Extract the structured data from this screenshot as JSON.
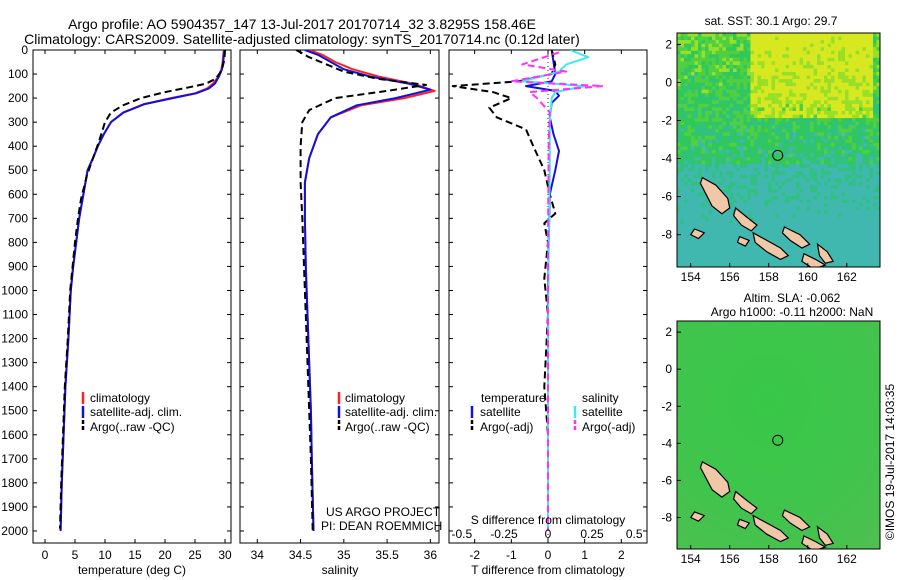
{
  "header": {
    "title_line1": "Argo profile: AO 5904357_147 13-Jul-2017 20170714_32 3.8295S 158.46E",
    "title_line2": "Climatology: CARS2009. Satellite-adjusted climatology: synTS_20170714.nc (0.12d later)"
  },
  "colors": {
    "climatology": "#ff2020",
    "satellite": "#1010e0",
    "argo": "#000000",
    "salinity_satellite": "#40e8f0",
    "salinity_argo": "#ff30ff",
    "land": "#f0c8a8"
  },
  "chart_data": [
    {
      "type": "line",
      "name": "temperature-profile",
      "xlabel": "temperature (deg C)",
      "ylabel": "",
      "xlim": [
        -2,
        31
      ],
      "ylim": [
        2050,
        0
      ],
      "xticks": [
        "0",
        "5",
        "10",
        "15",
        "20",
        "25",
        "30"
      ],
      "yticks": [
        "0",
        "100",
        "200",
        "300",
        "400",
        "500",
        "600",
        "700",
        "800",
        "900",
        "1000",
        "1100",
        "1200",
        "1300",
        "1400",
        "1500",
        "1600",
        "1700",
        "1800",
        "1900",
        "2000"
      ],
      "legend": [
        "climatology",
        "satellite-adj. clim.",
        "Argo(..raw -QC)"
      ],
      "legend_position": "lower-center",
      "series": [
        {
          "name": "climatology",
          "color_key": "climatology",
          "dashed": false,
          "points": [
            [
              29.8,
              0
            ],
            [
              29.6,
              50
            ],
            [
              29.4,
              80
            ],
            [
              28.9,
              110
            ],
            [
              28,
              140
            ],
            [
              27,
              160
            ],
            [
              25,
              180
            ],
            [
              21,
              200
            ],
            [
              16.5,
              225
            ],
            [
              13,
              260
            ],
            [
              11,
              300
            ],
            [
              9.8,
              350
            ],
            [
              8.8,
              400
            ],
            [
              8,
              450
            ],
            [
              7.1,
              500
            ],
            [
              6.4,
              600
            ],
            [
              5.7,
              700
            ],
            [
              5.2,
              800
            ],
            [
              4.7,
              900
            ],
            [
              4.3,
              1000
            ],
            [
              3.9,
              1200
            ],
            [
              3.4,
              1400
            ],
            [
              3.1,
              1600
            ],
            [
              2.8,
              1800
            ],
            [
              2.6,
              2000
            ]
          ]
        },
        {
          "name": "satellite-adj. clim.",
          "color_key": "satellite",
          "dashed": false,
          "points": [
            [
              29.9,
              0
            ],
            [
              29.7,
              50
            ],
            [
              29.5,
              80
            ],
            [
              29,
              110
            ],
            [
              28.3,
              140
            ],
            [
              27.3,
              160
            ],
            [
              25.2,
              180
            ],
            [
              21.3,
              200
            ],
            [
              16.6,
              225
            ],
            [
              13.1,
              260
            ],
            [
              11,
              300
            ],
            [
              9.8,
              350
            ],
            [
              8.8,
              400
            ],
            [
              8,
              450
            ],
            [
              7.1,
              500
            ],
            [
              6.4,
              600
            ],
            [
              5.7,
              700
            ],
            [
              5.2,
              800
            ],
            [
              4.7,
              900
            ],
            [
              4.3,
              1000
            ],
            [
              3.9,
              1200
            ],
            [
              3.4,
              1400
            ],
            [
              3.1,
              1600
            ],
            [
              2.8,
              1800
            ],
            [
              2.6,
              2000
            ]
          ]
        },
        {
          "name": "Argo(..raw -QC)",
          "color_key": "argo",
          "dashed": true,
          "points": [
            [
              30,
              0
            ],
            [
              29.9,
              40
            ],
            [
              29.6,
              70
            ],
            [
              29.2,
              95
            ],
            [
              28.4,
              120
            ],
            [
              26.8,
              140
            ],
            [
              24,
              155
            ],
            [
              20,
              175
            ],
            [
              16,
              200
            ],
            [
              13,
              230
            ],
            [
              11,
              260
            ],
            [
              10,
              300
            ],
            [
              9,
              380
            ],
            [
              8,
              450
            ],
            [
              7,
              520
            ],
            [
              6,
              620
            ],
            [
              5.5,
              700
            ],
            [
              5,
              800
            ],
            [
              4.6,
              900
            ],
            [
              4.2,
              1000
            ],
            [
              3.8,
              1200
            ],
            [
              3.3,
              1400
            ],
            [
              3,
              1600
            ],
            [
              2.7,
              1800
            ],
            [
              2.5,
              1990
            ]
          ]
        }
      ]
    },
    {
      "type": "line",
      "name": "salinity-profile",
      "xlabel": "salinity",
      "ylabel": "",
      "xlim": [
        33.8,
        36.1
      ],
      "ylim": [
        2050,
        0
      ],
      "xticks": [
        "34",
        "34.5",
        "35",
        "35.5",
        "36"
      ],
      "legend": [
        "climatology",
        "satellite-adj. clim.",
        "Argo(..raw -QC)"
      ],
      "legend_position": "lower-right",
      "annotation": [
        "US ARGO PROJECT",
        "PI: DEAN ROEMMICH"
      ],
      "series": [
        {
          "name": "climatology",
          "color_key": "climatology",
          "dashed": false,
          "points": [
            [
              34.6,
              0
            ],
            [
              34.75,
              20
            ],
            [
              34.9,
              50
            ],
            [
              35.1,
              80
            ],
            [
              35.4,
              110
            ],
            [
              35.8,
              140
            ],
            [
              36.05,
              170
            ],
            [
              35.7,
              200
            ],
            [
              35.2,
              230
            ],
            [
              34.85,
              280
            ],
            [
              34.7,
              350
            ],
            [
              34.6,
              450
            ],
            [
              34.55,
              550
            ],
            [
              34.55,
              700
            ],
            [
              34.56,
              900
            ],
            [
              34.58,
              1100
            ],
            [
              34.6,
              1300
            ],
            [
              34.62,
              1500
            ],
            [
              34.63,
              1700
            ],
            [
              34.65,
              2000
            ]
          ]
        },
        {
          "name": "satellite-adj. clim.",
          "color_key": "satellite",
          "dashed": false,
          "points": [
            [
              34.55,
              0
            ],
            [
              34.7,
              20
            ],
            [
              34.85,
              50
            ],
            [
              35.0,
              80
            ],
            [
              35.3,
              110
            ],
            [
              35.75,
              140
            ],
            [
              36.0,
              165
            ],
            [
              35.6,
              200
            ],
            [
              35.15,
              230
            ],
            [
              34.85,
              280
            ],
            [
              34.7,
              350
            ],
            [
              34.6,
              450
            ],
            [
              34.55,
              550
            ],
            [
              34.55,
              700
            ],
            [
              34.56,
              900
            ],
            [
              34.58,
              1100
            ],
            [
              34.6,
              1300
            ],
            [
              34.62,
              1500
            ],
            [
              34.63,
              1700
            ],
            [
              34.65,
              2000
            ]
          ]
        },
        {
          "name": "Argo(..raw -QC)",
          "color_key": "argo",
          "dashed": true,
          "points": [
            [
              34.45,
              0
            ],
            [
              34.6,
              30
            ],
            [
              34.8,
              60
            ],
            [
              35.0,
              90
            ],
            [
              35.4,
              120
            ],
            [
              35.95,
              145
            ],
            [
              35.5,
              170
            ],
            [
              34.9,
              200
            ],
            [
              34.6,
              250
            ],
            [
              34.52,
              300
            ],
            [
              34.5,
              400
            ],
            [
              34.5,
              550
            ],
            [
              34.52,
              700
            ],
            [
              34.54,
              900
            ],
            [
              34.56,
              1100
            ],
            [
              34.58,
              1300
            ],
            [
              34.6,
              1500
            ],
            [
              34.62,
              1700
            ],
            [
              34.64,
              2000
            ]
          ]
        }
      ]
    },
    {
      "type": "line",
      "name": "difference-profile",
      "xlabel": "T difference from climatology",
      "x2label": "S difference from climatology",
      "xlim": [
        -2.7,
        2.7
      ],
      "ylim": [
        2050,
        0
      ],
      "xticks": [
        "-2",
        "-1",
        "0",
        "1",
        "2"
      ],
      "x2ticks": [
        "-0.5",
        "-0.25",
        "0",
        "0.25",
        "0.5"
      ],
      "legend_temperature_title": "temperature",
      "legend_salinity_title": "salinity",
      "legend_temperature": [
        "satellite",
        "Argo(-adj)"
      ],
      "legend_salinity": [
        "satellite",
        "Argo(-adj)"
      ],
      "series": [
        {
          "name": "temperature satellite",
          "color_key": "satellite",
          "dashed": false,
          "points": [
            [
              0.1,
              0
            ],
            [
              0.15,
              50
            ],
            [
              0.2,
              100
            ],
            [
              0.1,
              130
            ],
            [
              -0.6,
              150
            ],
            [
              0.2,
              170
            ],
            [
              0.3,
              190
            ],
            [
              0.1,
              220
            ],
            [
              0.05,
              280
            ],
            [
              0.15,
              350
            ],
            [
              0.3,
              420
            ],
            [
              0.2,
              500
            ],
            [
              0.05,
              600
            ],
            [
              0.02,
              800
            ],
            [
              0,
              1000
            ],
            [
              0,
              1500
            ],
            [
              0,
              2000
            ]
          ]
        },
        {
          "name": "temperature Argo(-adj)",
          "color_key": "argo",
          "dashed": true,
          "points": [
            [
              0.1,
              0
            ],
            [
              0.2,
              60
            ],
            [
              0.1,
              100
            ],
            [
              -0.8,
              130
            ],
            [
              -2.6,
              150
            ],
            [
              -1.5,
              175
            ],
            [
              -1.0,
              200
            ],
            [
              -1.6,
              240
            ],
            [
              -1.4,
              280
            ],
            [
              -0.6,
              330
            ],
            [
              -0.4,
              400
            ],
            [
              -0.1,
              500
            ],
            [
              0.05,
              600
            ],
            [
              0.2,
              680
            ],
            [
              -0.1,
              720
            ],
            [
              0,
              800
            ],
            [
              -0.1,
              950
            ],
            [
              0,
              1100
            ],
            [
              -0.1,
              1400
            ],
            [
              0,
              1600
            ],
            [
              0,
              1800
            ],
            [
              0,
              2000
            ]
          ]
        },
        {
          "name": "salinity satellite",
          "color_key": "salinity_satellite",
          "dashed": false,
          "points": [
            [
              0.6,
              0
            ],
            [
              1.1,
              30
            ],
            [
              0.5,
              60
            ],
            [
              0.3,
              90
            ],
            [
              -0.7,
              130
            ],
            [
              1.0,
              150
            ],
            [
              0.2,
              175
            ],
            [
              0.1,
              200
            ],
            [
              0.05,
              300
            ],
            [
              0.05,
              500
            ],
            [
              0.02,
              800
            ],
            [
              0,
              1200
            ],
            [
              0,
              2000
            ]
          ]
        },
        {
          "name": "salinity Argo(-adj)",
          "color_key": "salinity_argo",
          "dashed": true,
          "points": [
            [
              0.3,
              10
            ],
            [
              -0.7,
              60
            ],
            [
              0.5,
              90
            ],
            [
              -1.0,
              130
            ],
            [
              1.5,
              150
            ],
            [
              -0.5,
              175
            ],
            [
              -0.3,
              200
            ],
            [
              0.05,
              260
            ],
            [
              0.02,
              400
            ],
            [
              0,
              800
            ],
            [
              0,
              2000
            ]
          ]
        }
      ]
    },
    {
      "type": "heatmap",
      "name": "sst-map",
      "title": "sat. SST: 30.1  Argo: 29.7",
      "xlim": [
        153.3,
        163.7
      ],
      "ylim": [
        -9.7,
        2.6
      ],
      "xticks": [
        "154",
        "156",
        "158",
        "160",
        "162"
      ],
      "yticks": [
        "2",
        "0",
        "-2",
        "-4",
        "-6",
        "-8"
      ],
      "marker": {
        "lon": 158.46,
        "lat": -3.83
      }
    },
    {
      "type": "heatmap",
      "name": "sla-map",
      "title_line1": "Altim. SLA: -0.062",
      "title_line2": "Argo h1000: -0.11  h2000: NaN",
      "xlim": [
        153.3,
        163.7
      ],
      "ylim": [
        -9.7,
        2.6
      ],
      "xticks": [
        "154",
        "156",
        "158",
        "160",
        "162"
      ],
      "yticks": [
        "2",
        "0",
        "-2",
        "-4",
        "-6",
        "-8"
      ],
      "marker": {
        "lon": 158.46,
        "lat": -3.83
      }
    }
  ],
  "footer": {
    "credit": "©IMOS 19-Jul-2017 14:03:35"
  }
}
